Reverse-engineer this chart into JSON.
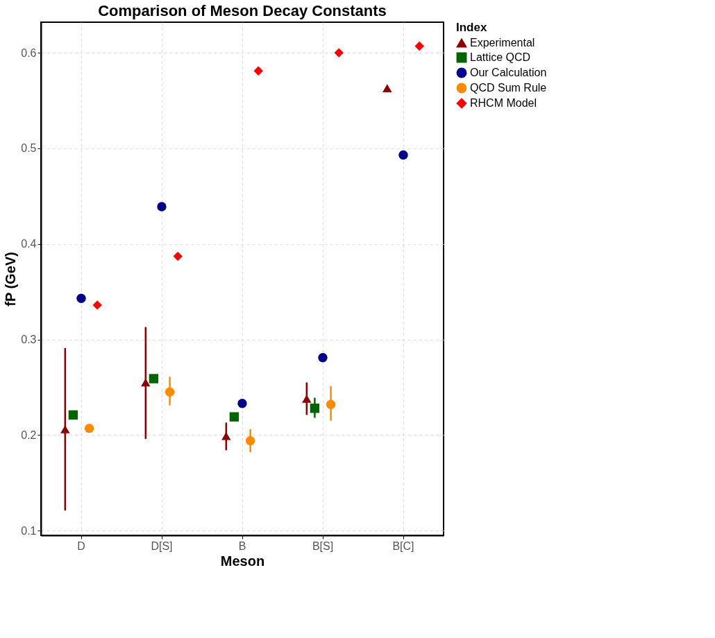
{
  "chart_data": {
    "type": "scatter",
    "title": "Comparison of Meson Decay Constants",
    "xlabel": "Meson",
    "ylabel": "fP  (GeV)",
    "legend_title": "Index",
    "categories": [
      "D",
      "D[S]",
      "B",
      "B[S]",
      "B[C]"
    ],
    "series": [
      {
        "name": "Experimental",
        "color": "#8b0000",
        "marker": "triangle",
        "values": [
          0.206,
          0.255,
          0.199,
          0.238,
          0.563
        ],
        "errors": [
          [
            0.121,
            0.291
          ],
          [
            0.196,
            0.313
          ],
          [
            0.184,
            0.213
          ],
          [
            0.221,
            0.255
          ],
          null
        ]
      },
      {
        "name": "Lattice QCD",
        "color": "#006400",
        "marker": "square",
        "values": [
          0.221,
          0.259,
          0.219,
          0.228,
          null
        ],
        "errors": [
          null,
          null,
          null,
          [
            0.218,
            0.239
          ],
          null
        ]
      },
      {
        "name": "Our Calculation",
        "color": "#00008b",
        "marker": "circle",
        "values": [
          0.343,
          0.439,
          0.233,
          0.281,
          0.493
        ]
      },
      {
        "name": "QCD Sum Rule",
        "color": "#ff8c00",
        "marker": "circle",
        "values": [
          0.207,
          0.245,
          0.194,
          0.232,
          null
        ],
        "errors": [
          null,
          [
            0.231,
            0.261
          ],
          [
            0.182,
            0.206
          ],
          [
            0.215,
            0.251
          ],
          null
        ]
      },
      {
        "name": "RHCM Model",
        "color": "#ff0000",
        "marker": "diamond",
        "values": [
          0.336,
          0.387,
          0.581,
          0.6,
          0.607
        ]
      }
    ],
    "ylim": [
      0.095,
      0.632
    ],
    "yticks": [
      0.1,
      0.2,
      0.3,
      0.4,
      0.5,
      0.6
    ],
    "grid": true,
    "legend": "right"
  }
}
